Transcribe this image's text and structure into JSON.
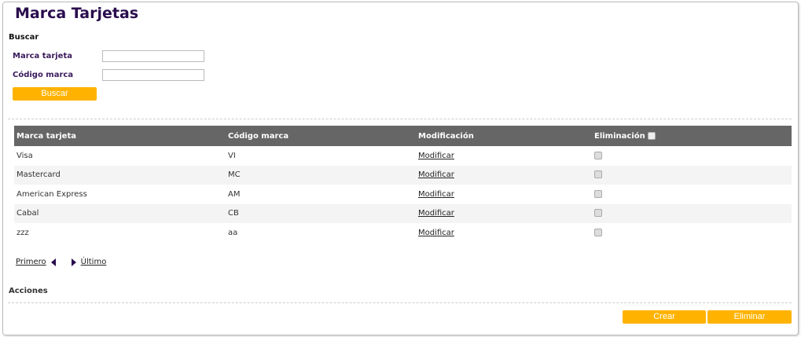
{
  "title": "Marca Tarjetas",
  "search": {
    "heading": "Buscar",
    "fields": [
      {
        "label": "Marca tarjeta",
        "value": ""
      },
      {
        "label": "Código marca",
        "value": ""
      }
    ],
    "button": "Buscar"
  },
  "table": {
    "headers": [
      "Marca tarjeta",
      "Código marca",
      "Modificación",
      "Eliminación"
    ],
    "rows": [
      {
        "marca": "Visa",
        "codigo": "VI",
        "link": "Modificar"
      },
      {
        "marca": "Mastercard",
        "codigo": "MC",
        "link": "Modificar"
      },
      {
        "marca": "American Express",
        "codigo": "AM",
        "link": "Modificar"
      },
      {
        "marca": "Cabal",
        "codigo": "CB",
        "link": "Modificar"
      },
      {
        "marca": "zzz",
        "codigo": "aa",
        "link": "Modificar"
      }
    ]
  },
  "pagination": {
    "first": "Primero",
    "last": "Último"
  },
  "actions": {
    "heading": "Acciones",
    "create": "Crear",
    "delete": "Eliminar"
  },
  "colors": {
    "accent": "#ffb300",
    "header": "#666666",
    "title": "#2a0d4d"
  }
}
